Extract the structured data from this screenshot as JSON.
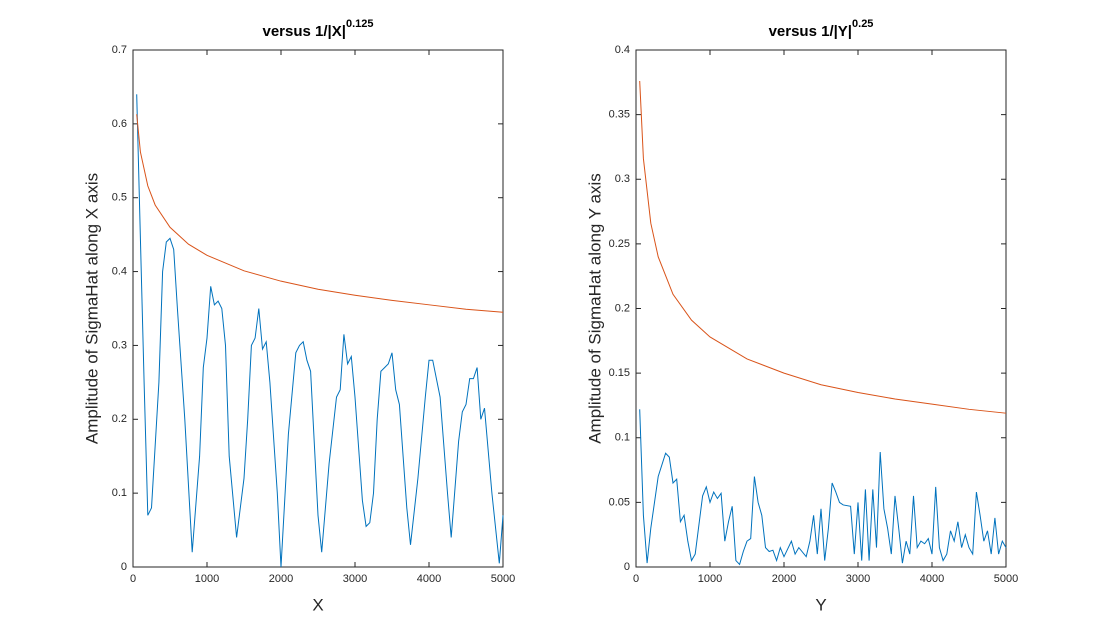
{
  "chart_data": [
    {
      "type": "line",
      "title": "versus 1/|X|",
      "title_exponent": "0.125",
      "x_label": "X",
      "y_label": "Amplitude of SigmaHat along X axis",
      "xlim": [
        0,
        5000
      ],
      "ylim": [
        0,
        0.7
      ],
      "xticks": [
        0,
        1000,
        2000,
        3000,
        4000,
        5000
      ],
      "yticks": [
        0,
        0.1,
        0.2,
        0.3,
        0.4,
        0.5,
        0.6,
        0.7
      ],
      "series": [
        {
          "color": "#0072bd",
          "x": [
            50,
            150,
            200,
            250,
            350,
            400,
            450,
            500,
            550,
            600,
            700,
            800,
            900,
            950,
            1000,
            1050,
            1100,
            1150,
            1200,
            1250,
            1300,
            1400,
            1500,
            1550,
            1600,
            1650,
            1700,
            1750,
            1800,
            1850,
            1950,
            2000,
            2100,
            2200,
            2250,
            2300,
            2350,
            2400,
            2500,
            2550,
            2650,
            2750,
            2800,
            2850,
            2900,
            2950,
            3000,
            3100,
            3150,
            3200,
            3250,
            3300,
            3350,
            3400,
            3450,
            3500,
            3550,
            3600,
            3700,
            3750,
            3850,
            3950,
            4000,
            4050,
            4150,
            4250,
            4300,
            4400,
            4450,
            4500,
            4550,
            4600,
            4650,
            4700,
            4750,
            4850,
            4950,
            5000
          ],
          "values": [
            0.64,
            0.25,
            0.07,
            0.08,
            0.25,
            0.4,
            0.44,
            0.445,
            0.43,
            0.35,
            0.2,
            0.02,
            0.15,
            0.27,
            0.31,
            0.38,
            0.355,
            0.36,
            0.35,
            0.3,
            0.15,
            0.04,
            0.12,
            0.2,
            0.3,
            0.31,
            0.35,
            0.295,
            0.305,
            0.25,
            0.1,
            0.0,
            0.18,
            0.29,
            0.3,
            0.305,
            0.28,
            0.265,
            0.07,
            0.02,
            0.14,
            0.23,
            0.24,
            0.315,
            0.275,
            0.285,
            0.23,
            0.09,
            0.055,
            0.06,
            0.1,
            0.2,
            0.265,
            0.27,
            0.275,
            0.29,
            0.24,
            0.22,
            0.08,
            0.03,
            0.12,
            0.23,
            0.28,
            0.28,
            0.23,
            0.1,
            0.04,
            0.17,
            0.21,
            0.22,
            0.255,
            0.255,
            0.27,
            0.2,
            0.215,
            0.1,
            0.005,
            0.07
          ]
        },
        {
          "color": "#d95319",
          "x": [
            50,
            100,
            200,
            300,
            500,
            750,
            1000,
            1500,
            2000,
            2500,
            3000,
            3500,
            4000,
            4500,
            5000
          ],
          "values": [
            0.613,
            0.562,
            0.516,
            0.49,
            0.46,
            0.437,
            0.422,
            0.401,
            0.387,
            0.376,
            0.368,
            0.361,
            0.355,
            0.349,
            0.345
          ]
        }
      ]
    },
    {
      "type": "line",
      "title": "versus 1/|Y|",
      "title_exponent": "0.25",
      "x_label": "Y",
      "y_label": "Amplitude of SigmaHat along Y axis",
      "xlim": [
        0,
        5000
      ],
      "ylim": [
        0,
        0.4
      ],
      "xticks": [
        0,
        1000,
        2000,
        3000,
        4000,
        5000
      ],
      "yticks": [
        0,
        0.05,
        0.1,
        0.15,
        0.2,
        0.25,
        0.3,
        0.35,
        0.4
      ],
      "series": [
        {
          "color": "#0072bd",
          "x": [
            50,
            100,
            150,
            200,
            300,
            400,
            450,
            500,
            550,
            600,
            650,
            700,
            750,
            800,
            900,
            950,
            1000,
            1050,
            1100,
            1150,
            1200,
            1250,
            1300,
            1350,
            1400,
            1450,
            1500,
            1550,
            1600,
            1650,
            1700,
            1750,
            1800,
            1850,
            1900,
            1950,
            2000,
            2100,
            2150,
            2200,
            2300,
            2350,
            2400,
            2450,
            2500,
            2550,
            2600,
            2650,
            2700,
            2750,
            2800,
            2900,
            2950,
            3000,
            3050,
            3100,
            3150,
            3200,
            3250,
            3300,
            3350,
            3400,
            3450,
            3500,
            3550,
            3600,
            3650,
            3700,
            3750,
            3800,
            3850,
            3900,
            3950,
            4000,
            4050,
            4100,
            4150,
            4200,
            4250,
            4300,
            4350,
            4400,
            4450,
            4500,
            4550,
            4600,
            4650,
            4700,
            4750,
            4800,
            4850,
            4900,
            4950,
            5000
          ],
          "values": [
            0.122,
            0.04,
            0.003,
            0.03,
            0.07,
            0.088,
            0.085,
            0.065,
            0.068,
            0.035,
            0.04,
            0.02,
            0.005,
            0.01,
            0.055,
            0.062,
            0.05,
            0.058,
            0.053,
            0.057,
            0.02,
            0.035,
            0.047,
            0.005,
            0.002,
            0.012,
            0.02,
            0.022,
            0.07,
            0.05,
            0.04,
            0.015,
            0.012,
            0.013,
            0.005,
            0.015,
            0.008,
            0.02,
            0.01,
            0.015,
            0.008,
            0.02,
            0.04,
            0.01,
            0.045,
            0.005,
            0.03,
            0.065,
            0.058,
            0.05,
            0.048,
            0.047,
            0.01,
            0.05,
            0.005,
            0.06,
            0.005,
            0.06,
            0.015,
            0.089,
            0.045,
            0.03,
            0.01,
            0.055,
            0.03,
            0.003,
            0.02,
            0.01,
            0.055,
            0.015,
            0.02,
            0.018,
            0.022,
            0.01,
            0.062,
            0.015,
            0.005,
            0.01,
            0.028,
            0.02,
            0.035,
            0.015,
            0.025,
            0.015,
            0.01,
            0.058,
            0.04,
            0.02,
            0.028,
            0.01,
            0.038,
            0.01,
            0.02,
            0.015
          ]
        },
        {
          "color": "#d95319",
          "x": [
            50,
            100,
            200,
            300,
            500,
            750,
            1000,
            1500,
            2000,
            2500,
            3000,
            3500,
            4000,
            4500,
            5000
          ],
          "values": [
            0.376,
            0.316,
            0.266,
            0.24,
            0.211,
            0.191,
            0.178,
            0.161,
            0.15,
            0.141,
            0.135,
            0.13,
            0.126,
            0.122,
            0.119
          ]
        }
      ]
    }
  ]
}
